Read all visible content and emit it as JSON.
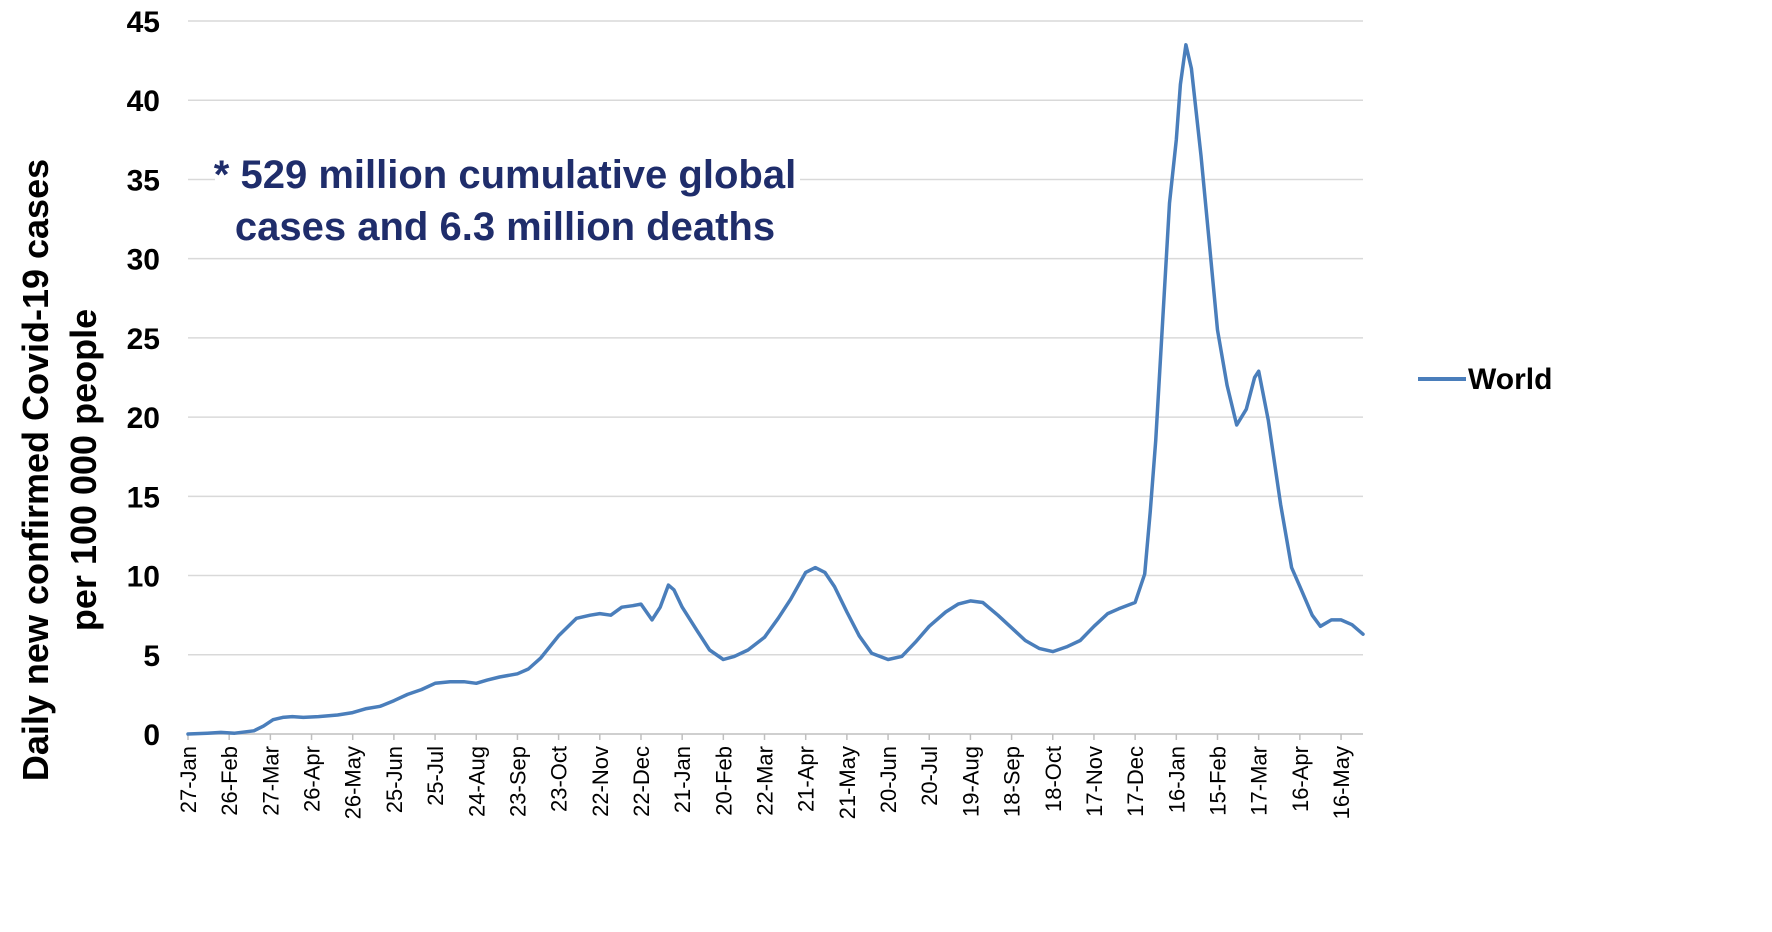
{
  "chart_data": {
    "type": "line",
    "ylabel_line1": "Daily new confirmed Covid-19 cases",
    "ylabel_line2": "per 100 000 people",
    "ylim": [
      0,
      45
    ],
    "y_ticks": [
      0,
      5,
      10,
      15,
      20,
      25,
      30,
      35,
      40,
      45
    ],
    "x_tick_labels": [
      "27-Jan",
      "26-Feb",
      "27-Mar",
      "26-Apr",
      "26-May",
      "25-Jun",
      "25-Jul",
      "24-Aug",
      "23-Sep",
      "23-Oct",
      "22-Nov",
      "22-Dec",
      "21-Jan",
      "20-Feb",
      "22-Mar",
      "21-Apr",
      "21-May",
      "20-Jun",
      "20-Jul",
      "19-Aug",
      "18-Sep",
      "18-Oct",
      "17-Nov",
      "17-Dec",
      "16-Jan",
      "15-Feb",
      "17-Mar",
      "16-Apr",
      "16-May"
    ],
    "x_start": "2020-01-27",
    "x_end": "2022-06-01",
    "grid": true,
    "legend_position": "right",
    "annotation_line1": "* 529 million cumulative global",
    "annotation_line2": "cases and 6.3 million deaths",
    "series": [
      {
        "name": "World",
        "color": "#4a7ebb",
        "points": [
          [
            "2020-01-27",
            0.0
          ],
          [
            "2020-02-10",
            0.05
          ],
          [
            "2020-02-20",
            0.1
          ],
          [
            "2020-03-01",
            0.05
          ],
          [
            "2020-03-15",
            0.2
          ],
          [
            "2020-03-22",
            0.5
          ],
          [
            "2020-03-29",
            0.9
          ],
          [
            "2020-04-05",
            1.05
          ],
          [
            "2020-04-12",
            1.1
          ],
          [
            "2020-04-20",
            1.05
          ],
          [
            "2020-05-01",
            1.1
          ],
          [
            "2020-05-15",
            1.2
          ],
          [
            "2020-05-26",
            1.35
          ],
          [
            "2020-06-05",
            1.6
          ],
          [
            "2020-06-15",
            1.75
          ],
          [
            "2020-06-25",
            2.1
          ],
          [
            "2020-07-05",
            2.5
          ],
          [
            "2020-07-15",
            2.8
          ],
          [
            "2020-07-25",
            3.2
          ],
          [
            "2020-08-05",
            3.3
          ],
          [
            "2020-08-15",
            3.3
          ],
          [
            "2020-08-24",
            3.2
          ],
          [
            "2020-09-01",
            3.4
          ],
          [
            "2020-09-10",
            3.6
          ],
          [
            "2020-09-23",
            3.8
          ],
          [
            "2020-10-01",
            4.1
          ],
          [
            "2020-10-10",
            4.8
          ],
          [
            "2020-10-23",
            6.2
          ],
          [
            "2020-11-05",
            7.3
          ],
          [
            "2020-11-15",
            7.5
          ],
          [
            "2020-11-22",
            7.6
          ],
          [
            "2020-11-30",
            7.5
          ],
          [
            "2020-12-08",
            8.0
          ],
          [
            "2020-12-16",
            8.1
          ],
          [
            "2020-12-22",
            8.2
          ],
          [
            "2020-12-30",
            7.2
          ],
          [
            "2021-01-05",
            8.0
          ],
          [
            "2021-01-11",
            9.4
          ],
          [
            "2021-01-15",
            9.1
          ],
          [
            "2021-01-21",
            8.0
          ],
          [
            "2021-02-01",
            6.5
          ],
          [
            "2021-02-10",
            5.3
          ],
          [
            "2021-02-20",
            4.7
          ],
          [
            "2021-02-28",
            4.9
          ],
          [
            "2021-03-10",
            5.3
          ],
          [
            "2021-03-22",
            6.1
          ],
          [
            "2021-04-01",
            7.3
          ],
          [
            "2021-04-10",
            8.5
          ],
          [
            "2021-04-21",
            10.2
          ],
          [
            "2021-04-28",
            10.5
          ],
          [
            "2021-05-05",
            10.2
          ],
          [
            "2021-05-12",
            9.3
          ],
          [
            "2021-05-21",
            7.7
          ],
          [
            "2021-05-30",
            6.2
          ],
          [
            "2021-06-08",
            5.1
          ],
          [
            "2021-06-20",
            4.7
          ],
          [
            "2021-06-30",
            4.9
          ],
          [
            "2021-07-10",
            5.8
          ],
          [
            "2021-07-20",
            6.8
          ],
          [
            "2021-08-01",
            7.7
          ],
          [
            "2021-08-10",
            8.2
          ],
          [
            "2021-08-19",
            8.4
          ],
          [
            "2021-08-28",
            8.3
          ],
          [
            "2021-09-08",
            7.5
          ],
          [
            "2021-09-18",
            6.7
          ],
          [
            "2021-09-28",
            5.9
          ],
          [
            "2021-10-08",
            5.4
          ],
          [
            "2021-10-18",
            5.2
          ],
          [
            "2021-10-28",
            5.5
          ],
          [
            "2021-11-07",
            5.9
          ],
          [
            "2021-11-17",
            6.8
          ],
          [
            "2021-11-27",
            7.6
          ],
          [
            "2021-12-05",
            7.9
          ],
          [
            "2021-12-17",
            8.3
          ],
          [
            "2021-12-24",
            10.1
          ],
          [
            "2021-12-28",
            14.0
          ],
          [
            "2022-01-01",
            18.5
          ],
          [
            "2022-01-06",
            26.0
          ],
          [
            "2022-01-11",
            33.5
          ],
          [
            "2022-01-16",
            37.5
          ],
          [
            "2022-01-19",
            41.0
          ],
          [
            "2022-01-23",
            43.5
          ],
          [
            "2022-01-27",
            42.0
          ],
          [
            "2022-02-03",
            36.5
          ],
          [
            "2022-02-09",
            31.0
          ],
          [
            "2022-02-15",
            25.5
          ],
          [
            "2022-02-22",
            22.0
          ],
          [
            "2022-03-01",
            19.5
          ],
          [
            "2022-03-08",
            20.5
          ],
          [
            "2022-03-14",
            22.5
          ],
          [
            "2022-03-17",
            22.9
          ],
          [
            "2022-03-24",
            19.8
          ],
          [
            "2022-04-02",
            14.5
          ],
          [
            "2022-04-10",
            10.5
          ],
          [
            "2022-04-16",
            9.3
          ],
          [
            "2022-04-25",
            7.5
          ],
          [
            "2022-05-01",
            6.8
          ],
          [
            "2022-05-09",
            7.2
          ],
          [
            "2022-05-16",
            7.2
          ],
          [
            "2022-05-24",
            6.9
          ],
          [
            "2022-06-01",
            6.3
          ]
        ]
      }
    ]
  }
}
